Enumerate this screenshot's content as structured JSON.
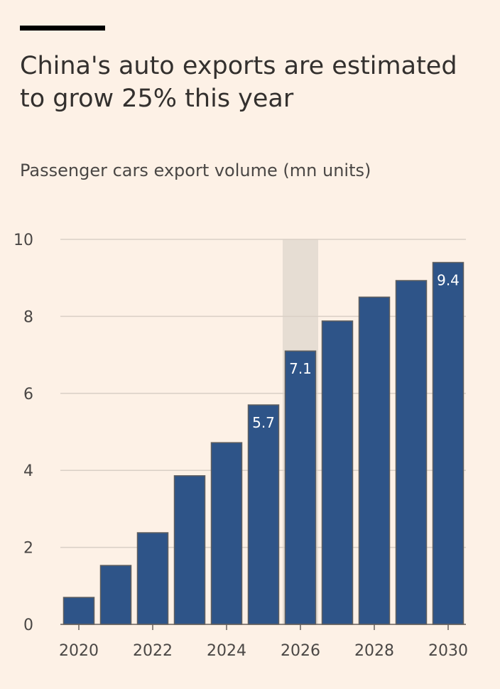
{
  "title": "China's auto exports are estimated to grow 25% this year",
  "subtitle": "Passenger cars export volume (mn units)",
  "colors": {
    "bar": "#2e5488",
    "bar_border": "#5e5e5e",
    "highlight": "#e6ddd3",
    "background": "#fdf1e6",
    "grid": "#d9cfc5"
  },
  "chart_data": {
    "type": "bar",
    "title": "China's auto exports are estimated to grow 25% this year",
    "ylabel": "Passenger cars export volume (mn units)",
    "xlabel": "",
    "categories": [
      "2020",
      "2021",
      "2022",
      "2023",
      "2024",
      "2025",
      "2026",
      "2027",
      "2028",
      "2029",
      "2030"
    ],
    "values": [
      0.7,
      1.53,
      2.38,
      3.86,
      4.72,
      5.7,
      7.1,
      7.88,
      8.5,
      8.93,
      9.4
    ],
    "data_labels": {
      "2025": "5.7",
      "2026": "7.1",
      "2030": "9.4"
    },
    "highlighted_category": "2026",
    "x_tick_labels": [
      "2020",
      "2022",
      "2024",
      "2026",
      "2028",
      "2030"
    ],
    "y_ticks": [
      0,
      2,
      4,
      6,
      8,
      10
    ],
    "ylim": [
      0,
      10
    ],
    "grid": true
  }
}
